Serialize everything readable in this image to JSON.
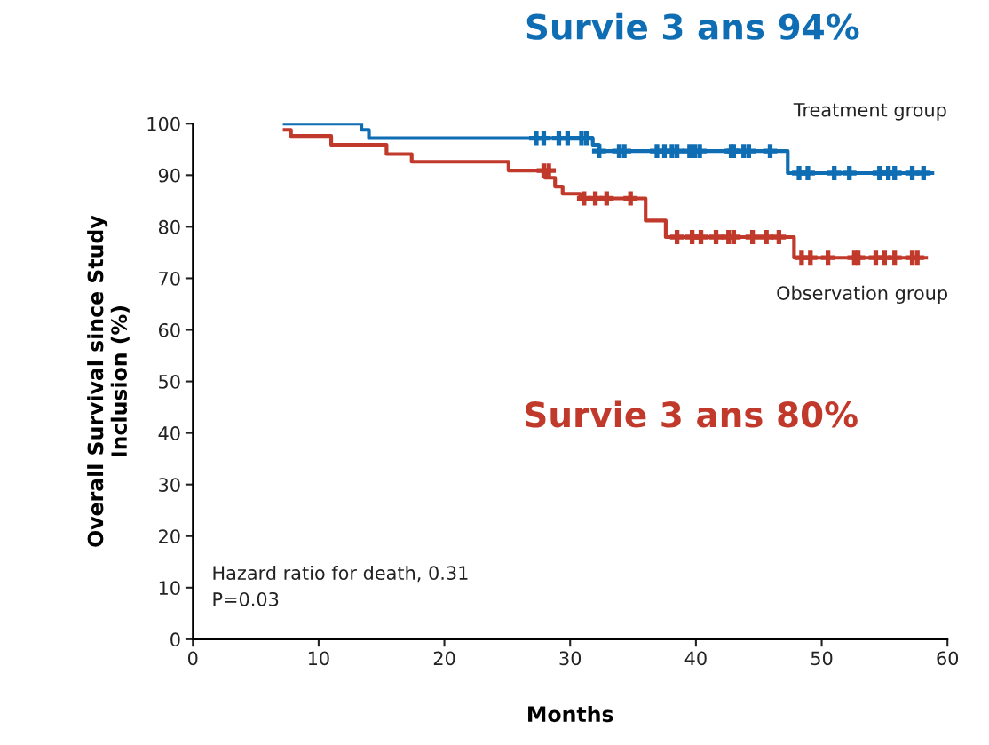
{
  "chart_data": {
    "type": "step",
    "title": "Survie 3 ans 94%",
    "xlabel": "Months",
    "ylabel": "Overall Survival since Study\nInclusion (%)",
    "annotations": [
      "Survie 3 ans 80%",
      "Hazard ratio for death, 0.31\nP=0.03"
    ],
    "series": [
      {
        "name": "Treatment group",
        "color": "#0f6db3",
        "x": [
          7.3,
          13.4,
          14.0,
          31.8,
          32.3,
          47.3,
          58.8
        ],
        "values": [
          100,
          98.8,
          97.2,
          95.9,
          94.7,
          90.4,
          90.4
        ]
      },
      {
        "name": "Observation group",
        "color": "#c0392b",
        "x": [
          7.3,
          7.8,
          11.0,
          15.4,
          17.4,
          25.1,
          28.0,
          28.8,
          29.4,
          30.8,
          36.0,
          37.6,
          47.8,
          58.3
        ],
        "values": [
          98.8,
          97.6,
          95.9,
          94.1,
          92.6,
          90.9,
          89.5,
          87.8,
          86.4,
          85.5,
          81.2,
          78.0,
          74.0,
          74.0
        ]
      },
      {
        "type": "scatter",
        "color": "#0f6db3",
        "marker": "cross",
        "x": [
          27.3,
          27.9,
          29.1,
          29.8,
          30.9,
          31.3,
          32.3,
          33.9,
          34.3,
          36.9,
          37.5,
          38.1,
          38.5,
          39.5,
          39.9,
          40.3,
          42.8,
          43.0,
          43.8,
          44.2,
          45.9,
          48.2,
          48.9,
          51.0,
          52.2,
          54.6,
          55.3,
          55.8,
          57.2,
          58.1
        ],
        "values": [
          97.2,
          97.2,
          97.2,
          97.2,
          97.2,
          97.2,
          94.7,
          94.7,
          94.7,
          94.7,
          94.7,
          94.7,
          94.7,
          94.7,
          94.7,
          94.7,
          94.7,
          94.7,
          94.7,
          94.7,
          94.7,
          90.4,
          90.4,
          90.4,
          90.4,
          90.4,
          90.4,
          90.4,
          90.4,
          90.4
        ]
      },
      {
        "type": "scatter",
        "color": "#c0392b",
        "marker": "cross",
        "x": [
          27.9,
          28.3,
          31.1,
          32.0,
          32.9,
          34.8,
          38.5,
          39.7,
          40.4,
          41.6,
          42.6,
          43.0,
          44.5,
          45.6,
          46.6,
          48.4,
          49.1,
          50.5,
          52.6,
          52.9,
          54.3,
          55.0,
          55.8,
          57.2,
          57.6
        ],
        "values": [
          90.9,
          90.9,
          85.5,
          85.5,
          85.5,
          85.5,
          78.0,
          78.0,
          78.0,
          78.0,
          78.0,
          78.0,
          78.0,
          78.0,
          78.0,
          74.0,
          74.0,
          74.0,
          74.0,
          74.0,
          74.0,
          74.0,
          74.0,
          74.0,
          74.0
        ]
      }
    ],
    "xlim": [
      0,
      60
    ],
    "xticks": [
      0,
      10,
      20,
      30,
      40,
      50,
      60
    ],
    "ylim": [
      0,
      100
    ],
    "yticks": [
      0,
      10,
      20,
      30,
      40,
      50,
      60,
      70,
      80,
      90,
      100
    ],
    "grid": false,
    "marker": "none",
    "line_style": "solid"
  }
}
